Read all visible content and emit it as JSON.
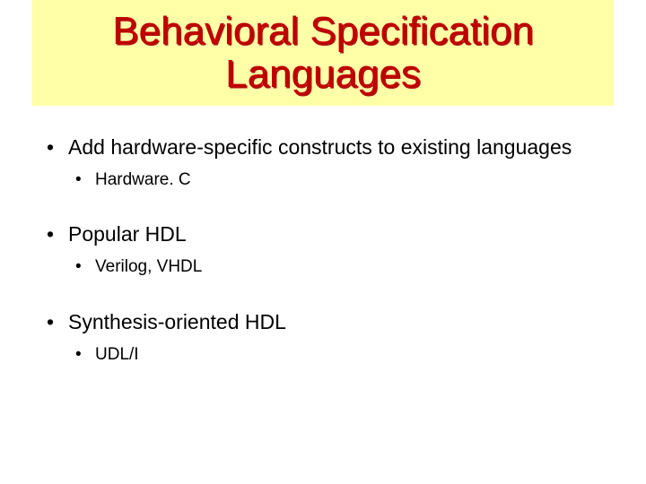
{
  "slide": {
    "title": "Behavioral Specification Languages",
    "title_bg": "#ffffa8",
    "title_color": "#c00000",
    "bullets": [
      {
        "text": "Add hardware-specific constructs  to existing languages",
        "sub": [
          {
            "text": "Hardware. C"
          }
        ]
      },
      {
        "text": "Popular HDL",
        "sub": [
          {
            "text": "Verilog, VHDL"
          }
        ]
      },
      {
        "text": "Synthesis-oriented HDL",
        "sub": [
          {
            "text": "UDL/I"
          }
        ]
      }
    ]
  },
  "style": {
    "body_font_size_pt": 17,
    "sub_font_size_pt": 14,
    "title_font_size_pt": 33,
    "background_color": "#ffffff",
    "text_color": "#000000"
  }
}
